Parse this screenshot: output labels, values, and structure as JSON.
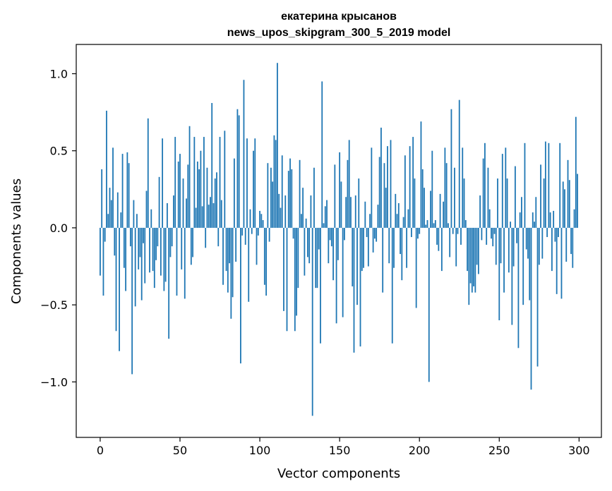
{
  "chart_data": {
    "type": "bar",
    "title": "екатерина крысанов",
    "subtitle": "news_upos_skipgram_300_5_2019 model",
    "xlabel": "Vector components",
    "ylabel": "Components values",
    "xlim": [
      -15,
      314
    ],
    "ylim": [
      -1.36,
      1.19
    ],
    "xticks": [
      0,
      50,
      100,
      150,
      200,
      250,
      300
    ],
    "xtick_labels": [
      "0",
      "50",
      "100",
      "150",
      "200",
      "250",
      "300"
    ],
    "yticks": [
      -1.0,
      -0.5,
      0.0,
      0.5,
      1.0
    ],
    "ytick_labels": [
      "−1.0",
      "−0.5",
      "0.0",
      "0.5",
      "1.0"
    ],
    "grid": false,
    "bar_color": "#1f77b4",
    "x": [
      0,
      1,
      2,
      3,
      4,
      5,
      6,
      7,
      8,
      9,
      10,
      11,
      12,
      13,
      14,
      15,
      16,
      17,
      18,
      19,
      20,
      21,
      22,
      23,
      24,
      25,
      26,
      27,
      28,
      29,
      30,
      31,
      32,
      33,
      34,
      35,
      36,
      37,
      38,
      39,
      40,
      41,
      42,
      43,
      44,
      45,
      46,
      47,
      48,
      49,
      50,
      51,
      52,
      53,
      54,
      55,
      56,
      57,
      58,
      59,
      60,
      61,
      62,
      63,
      64,
      65,
      66,
      67,
      68,
      69,
      70,
      71,
      72,
      73,
      74,
      75,
      76,
      77,
      78,
      79,
      80,
      81,
      82,
      83,
      84,
      85,
      86,
      87,
      88,
      89,
      90,
      91,
      92,
      93,
      94,
      95,
      96,
      97,
      98,
      99,
      100,
      101,
      102,
      103,
      104,
      105,
      106,
      107,
      108,
      109,
      110,
      111,
      112,
      113,
      114,
      115,
      116,
      117,
      118,
      119,
      120,
      121,
      122,
      123,
      124,
      125,
      126,
      127,
      128,
      129,
      130,
      131,
      132,
      133,
      134,
      135,
      136,
      137,
      138,
      139,
      140,
      141,
      142,
      143,
      144,
      145,
      146,
      147,
      148,
      149,
      150,
      151,
      152,
      153,
      154,
      155,
      156,
      157,
      158,
      159,
      160,
      161,
      162,
      163,
      164,
      165,
      166,
      167,
      168,
      169,
      170,
      171,
      172,
      173,
      174,
      175,
      176,
      177,
      178,
      179,
      180,
      181,
      182,
      183,
      184,
      185,
      186,
      187,
      188,
      189,
      190,
      191,
      192,
      193,
      194,
      195,
      196,
      197,
      198,
      199,
      200,
      201,
      202,
      203,
      204,
      205,
      206,
      207,
      208,
      209,
      210,
      211,
      212,
      213,
      214,
      215,
      216,
      217,
      218,
      219,
      220,
      221,
      222,
      223,
      224,
      225,
      226,
      227,
      228,
      229,
      230,
      231,
      232,
      233,
      234,
      235,
      236,
      237,
      238,
      239,
      240,
      241,
      242,
      243,
      244,
      245,
      246,
      247,
      248,
      249,
      250,
      251,
      252,
      253,
      254,
      255,
      256,
      257,
      258,
      259,
      260,
      261,
      262,
      263,
      264,
      265,
      266,
      267,
      268,
      269,
      270,
      271,
      272,
      273,
      274,
      275,
      276,
      277,
      278,
      279,
      280,
      281,
      282,
      283,
      284,
      285,
      286,
      287,
      288,
      289,
      290,
      291,
      292,
      293,
      294,
      295,
      296,
      297,
      298,
      299
    ],
    "values": [
      -0.31,
      0.38,
      -0.44,
      -0.09,
      0.76,
      0.09,
      0.26,
      0.18,
      0.52,
      -0.18,
      -0.67,
      0.23,
      -0.8,
      0.1,
      0.48,
      -0.26,
      -0.41,
      0.49,
      0.42,
      -0.12,
      -0.95,
      0.18,
      -0.51,
      0.09,
      -0.27,
      -0.19,
      -0.47,
      -0.1,
      -0.36,
      0.24,
      0.71,
      -0.29,
      0.12,
      -0.28,
      -0.39,
      -0.21,
      -0.12,
      0.33,
      -0.31,
      0.58,
      -0.41,
      -0.35,
      0.16,
      -0.72,
      -0.19,
      -0.12,
      0.21,
      0.59,
      -0.44,
      0.43,
      0.48,
      -0.27,
      0.32,
      -0.46,
      0.19,
      0.41,
      0.66,
      -0.24,
      -0.19,
      0.59,
      0.13,
      0.43,
      0.38,
      0.5,
      0.14,
      0.59,
      -0.13,
      0.39,
      0.15,
      0.2,
      0.81,
      0.16,
      0.32,
      0.36,
      -0.12,
      0.59,
      0.18,
      -0.37,
      0.63,
      -0.28,
      -0.42,
      -0.23,
      -0.59,
      -0.45,
      0.45,
      -0.22,
      0.77,
      0.73,
      -0.88,
      -0.05,
      0.96,
      -0.11,
      0.58,
      -0.48,
      0.12,
      -0.04,
      0.5,
      0.58,
      -0.24,
      -0.05,
      0.11,
      0.09,
      0.05,
      -0.37,
      -0.44,
      0.42,
      -0.09,
      0.39,
      0.3,
      0.6,
      0.57,
      1.07,
      0.22,
      0.13,
      0.47,
      -0.54,
      0.21,
      -0.67,
      0.37,
      0.45,
      0.38,
      -0.07,
      -0.67,
      -0.57,
      -0.39,
      0.44,
      0.09,
      0.26,
      -0.31,
      0.06,
      -0.19,
      -0.23,
      0.21,
      -1.22,
      0.39,
      -0.39,
      -0.39,
      -0.14,
      -0.75,
      0.95,
      0.03,
      0.14,
      0.18,
      -0.23,
      -0.08,
      -0.12,
      -0.34,
      0.41,
      -0.62,
      -0.21,
      0.49,
      0.3,
      -0.58,
      -0.08,
      0.2,
      0.44,
      0.57,
      0.2,
      -0.38,
      -0.81,
      0.21,
      -0.5,
      0.32,
      -0.77,
      -0.28,
      -0.26,
      0.17,
      -0.06,
      -0.25,
      0.09,
      0.52,
      -0.16,
      -0.07,
      -0.09,
      0.15,
      0.46,
      0.65,
      -0.42,
      0.42,
      0.26,
      0.53,
      -0.23,
      0.57,
      -0.75,
      -0.26,
      0.22,
      0.09,
      0.16,
      -0.17,
      -0.34,
      0.07,
      0.47,
      -0.26,
      0.12,
      0.53,
      -0.06,
      0.59,
      0.32,
      -0.52,
      -0.07,
      -0.04,
      0.69,
      0.38,
      0.26,
      0.02,
      0.05,
      -1.0,
      0.24,
      0.5,
      0.03,
      0.05,
      -0.11,
      -0.15,
      0.22,
      -0.28,
      0.17,
      0.52,
      0.42,
      0.03,
      -0.19,
      0.77,
      -0.04,
      0.39,
      -0.25,
      -0.04,
      0.83,
      -0.11,
      0.52,
      0.32,
      0.05,
      -0.28,
      -0.5,
      -0.36,
      -0.42,
      -0.38,
      -0.42,
      -0.24,
      -0.3,
      0.21,
      -0.08,
      0.45,
      0.55,
      -0.11,
      0.39,
      0.12,
      -0.07,
      -0.12,
      -0.04,
      -0.24,
      0.32,
      -0.6,
      -0.23,
      0.48,
      -0.42,
      0.52,
      0.32,
      -0.29,
      0.04,
      -0.63,
      -0.25,
      0.4,
      -0.1,
      -0.78,
      0.1,
      0.2,
      -0.5,
      0.55,
      -0.14,
      -0.2,
      -0.47,
      -1.05,
      0.1,
      0.04,
      0.2,
      -0.9,
      -0.24,
      0.41,
      -0.2,
      0.32,
      0.56,
      -0.06,
      0.55,
      0.1,
      -0.28,
      0.11,
      -0.09,
      -0.43,
      -0.06,
      0.55,
      -0.46,
      0.3,
      0.25,
      -0.22,
      0.44,
      0.31,
      -0.17,
      -0.26,
      0.12,
      0.72,
      0.35
    ]
  }
}
